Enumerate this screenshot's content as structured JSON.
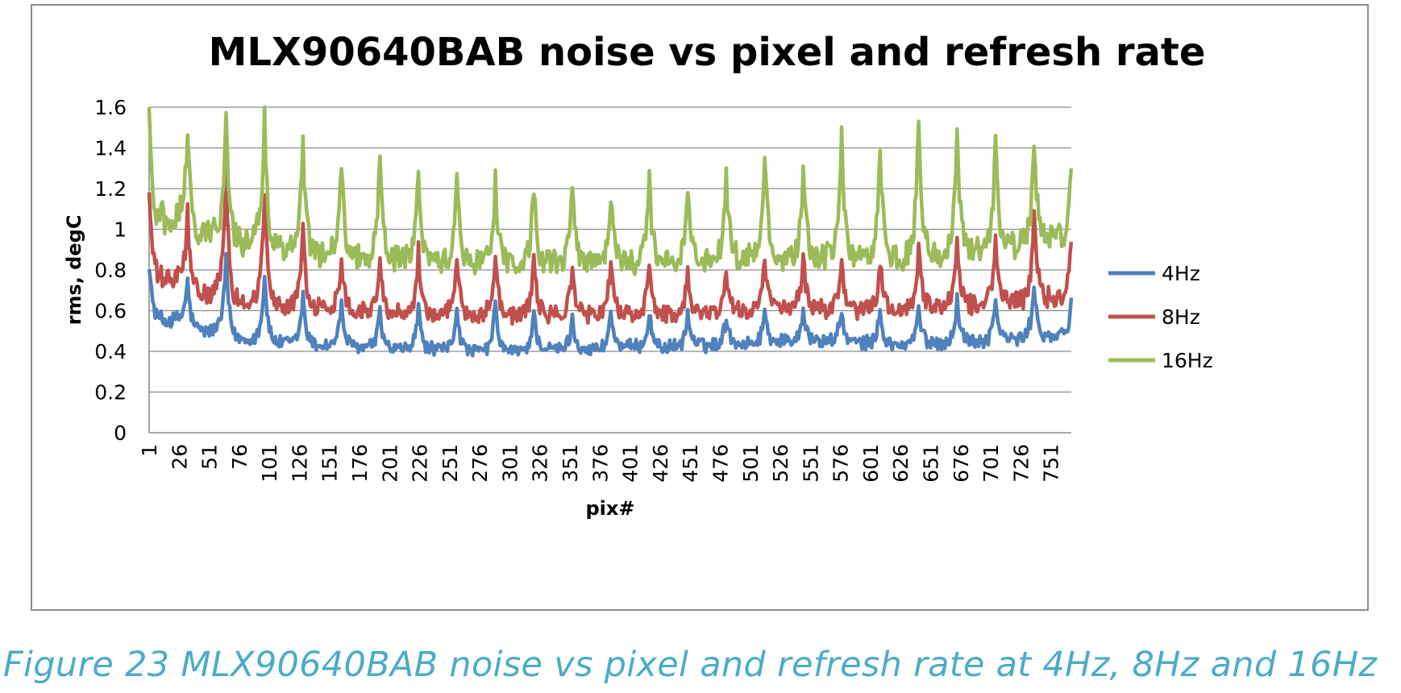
{
  "chart_data": {
    "type": "line",
    "title": "MLX90640BAB noise vs pixel and refresh rate",
    "xlabel": "pix#",
    "ylabel": "rms, degC",
    "x_range": [
      1,
      768
    ],
    "ylim": [
      0,
      1.6
    ],
    "yticks": [
      0,
      0.2,
      0.4,
      0.6,
      0.8,
      1,
      1.2,
      1.4,
      1.6
    ],
    "ytick_labels": [
      "0",
      "0.2",
      "0.4",
      "0.6",
      "0.8",
      "1",
      "1.2",
      "1.4",
      "1.6"
    ],
    "xtick_labels": [
      "1",
      "26",
      "51",
      "76",
      "101",
      "126",
      "151",
      "176",
      "201",
      "226",
      "251",
      "276",
      "301",
      "326",
      "351",
      "376",
      "401",
      "426",
      "451",
      "476",
      "501",
      "526",
      "551",
      "576",
      "601",
      "626",
      "651",
      "676",
      "701",
      "726",
      "751"
    ],
    "grid": true,
    "legend_position": "right",
    "period_pixels": 32,
    "series": [
      {
        "name": "4Hz",
        "color": "#4f81bd",
        "base": [
          0.55,
          0.5,
          0.46,
          0.44,
          0.43,
          0.42,
          0.41,
          0.41,
          0.4,
          0.4,
          0.41,
          0.41,
          0.42,
          0.42,
          0.43,
          0.44,
          0.45,
          0.45,
          0.44,
          0.43,
          0.44,
          0.45,
          0.46,
          0.47
        ],
        "peaks": [
          0.85,
          0.75,
          0.86,
          0.78,
          0.68,
          0.64,
          0.6,
          0.62,
          0.62,
          0.64,
          0.6,
          0.56,
          0.6,
          0.6,
          0.59,
          0.58,
          0.6,
          0.62,
          0.6,
          0.6,
          0.62,
          0.66,
          0.66,
          0.74
        ]
      },
      {
        "name": "8Hz",
        "color": "#c0504d",
        "base": [
          0.75,
          0.68,
          0.64,
          0.62,
          0.61,
          0.6,
          0.59,
          0.58,
          0.58,
          0.58,
          0.58,
          0.58,
          0.58,
          0.58,
          0.59,
          0.6,
          0.61,
          0.61,
          0.6,
          0.6,
          0.62,
          0.63,
          0.64,
          0.66
        ],
        "peaks": [
          1.2,
          1.08,
          1.3,
          1.2,
          1.04,
          0.88,
          0.84,
          0.9,
          0.88,
          0.9,
          0.86,
          0.82,
          0.86,
          0.86,
          0.8,
          0.8,
          0.86,
          0.88,
          0.84,
          0.86,
          0.9,
          0.98,
          0.98,
          1.12
        ]
      },
      {
        "name": "16Hz",
        "color": "#9bbb59",
        "base": [
          1.05,
          0.98,
          0.94,
          0.9,
          0.88,
          0.86,
          0.85,
          0.84,
          0.84,
          0.83,
          0.83,
          0.83,
          0.84,
          0.84,
          0.85,
          0.86,
          0.86,
          0.87,
          0.86,
          0.86,
          0.88,
          0.9,
          0.92,
          0.95
        ],
        "peaks": [
          1.6,
          1.52,
          1.6,
          1.6,
          1.43,
          1.36,
          1.38,
          1.32,
          1.26,
          1.26,
          1.22,
          1.24,
          1.18,
          1.23,
          1.2,
          1.28,
          1.4,
          1.3,
          1.45,
          1.4,
          1.57,
          1.5,
          1.44,
          1.44
        ]
      }
    ]
  },
  "caption": "Figure 23 MLX90640BAB noise vs pixel and refresh rate at 4Hz, 8Hz and 16Hz"
}
